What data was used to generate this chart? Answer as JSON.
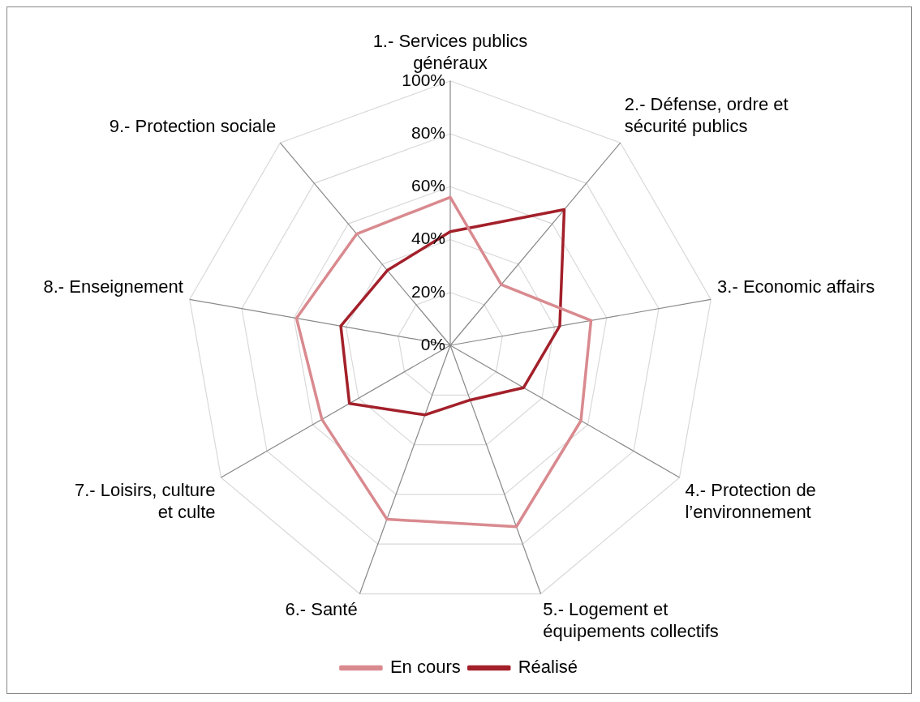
{
  "chart_data": {
    "type": "radar",
    "categories": [
      "1.- Services publics généraux",
      "2.- Défense, ordre et sécurité publics",
      "3.- Economic affairs",
      "4.- Protection de l’environnement",
      "5.- Logement et équipements collectifs",
      "6.- Santé",
      "7.- Loisirs, culture et culte",
      "8.- Enseignement",
      "9.- Protection sociale"
    ],
    "series": [
      {
        "name": "En cours",
        "color": "#d98a8f",
        "values": [
          56,
          30,
          54,
          57,
          73,
          70,
          56,
          59,
          55
        ]
      },
      {
        "name": "Réalisé",
        "color": "#a3202a",
        "values": [
          43,
          67,
          42,
          32,
          22,
          28,
          44,
          42,
          37
        ]
      }
    ],
    "ylim": [
      0,
      100
    ],
    "yticks": [
      {
        "value": 0,
        "label": "0%"
      },
      {
        "value": 20,
        "label": "20%"
      },
      {
        "value": 40,
        "label": "40%"
      },
      {
        "value": 60,
        "label": "60%"
      },
      {
        "value": 80,
        "label": "80%"
      },
      {
        "value": 100,
        "label": "100%"
      }
    ],
    "grid": true,
    "legend": "bottom",
    "marker": "none",
    "line_style": "solid"
  }
}
